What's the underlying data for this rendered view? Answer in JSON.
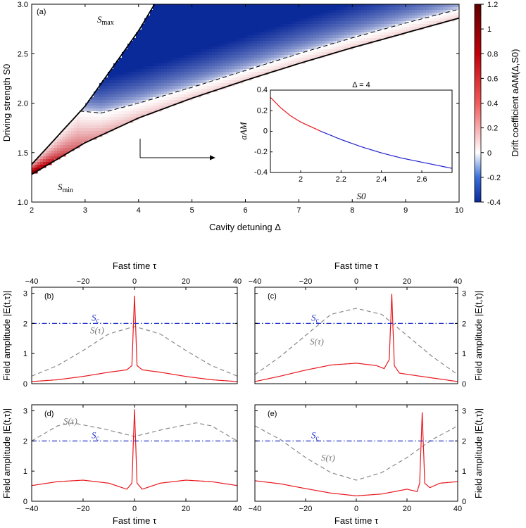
{
  "chart_data": [
    {
      "panel": "(a)",
      "type": "heatmap",
      "xlabel": "Cavity detuning Δ",
      "ylabel": "Driving strength S0",
      "xlim": [
        2,
        10
      ],
      "ylim": [
        1.0,
        3.0
      ],
      "xticks": [
        2,
        3,
        4,
        5,
        6,
        7,
        8,
        9,
        10
      ],
      "yticks": [
        1.0,
        1.5,
        2.0,
        2.5,
        3.0
      ],
      "colorbar": {
        "label": "Drift coefficient aAM(Δ,S0)",
        "range": [
          -0.4,
          1.2
        ],
        "ticks": [
          -0.4,
          -0.2,
          0,
          0.2,
          0.4,
          0.6,
          0.8,
          1,
          1.2
        ],
        "colors": {
          "negative": "#0b2a9a",
          "zero": "#ffffff",
          "positive": "#c0000a",
          "max": "#6a0000"
        }
      },
      "annotations": {
        "smax": "S",
        "smax_sub": "max",
        "smin": "S",
        "smin_sub": "min"
      },
      "curves": {
        "S_max": {
          "x": [
            2,
            3,
            4,
            4.3
          ],
          "y": [
            1.38,
            1.97,
            2.73,
            3.0
          ],
          "style": "solid"
        },
        "S_min": {
          "x": [
            2,
            3,
            4,
            5,
            6,
            7,
            8,
            9,
            10
          ],
          "y": [
            1.28,
            1.6,
            1.85,
            2.05,
            2.23,
            2.4,
            2.56,
            2.71,
            2.86
          ],
          "style": "solid"
        },
        "zero_contour": {
          "x": [
            2.9,
            3.3,
            4,
            5,
            6,
            7,
            8,
            9,
            10
          ],
          "y": [
            1.92,
            1.9,
            2.0,
            2.16,
            2.33,
            2.5,
            2.66,
            2.81,
            2.95
          ],
          "style": "dashed"
        }
      }
    },
    {
      "panel": "inset",
      "type": "line",
      "title": "Δ = 4",
      "xlabel": "S0",
      "ylabel": "aAM",
      "xlim": [
        1.85,
        2.75
      ],
      "ylim": [
        -0.4,
        0.4
      ],
      "xticks": [
        2,
        2.2,
        2.4,
        2.6
      ],
      "yticks": [
        0.4,
        0.2,
        0,
        -0.2,
        -0.4
      ],
      "series": [
        {
          "name": "aAM",
          "x": [
            1.85,
            1.9,
            1.95,
            2.0,
            2.1,
            2.2,
            2.3,
            2.4,
            2.5,
            2.6,
            2.75
          ],
          "y": [
            0.33,
            0.23,
            0.15,
            0.09,
            0.0,
            -0.08,
            -0.15,
            -0.21,
            -0.26,
            -0.3,
            -0.36
          ],
          "positive_color": "#e8181f",
          "negative_color": "#2222d0"
        }
      ]
    },
    {
      "panel": "(b)",
      "type": "line",
      "xlim": [
        -40,
        40
      ],
      "ylim": [
        0,
        3.2
      ],
      "xticks": [
        -40,
        -20,
        0,
        20,
        40
      ],
      "yticks": [
        0,
        1,
        2,
        3
      ],
      "sc_label": "S",
      "sc_sub": "c",
      "sc_value": 2.0,
      "s_tau_label": "S(τ)",
      "series": [
        {
          "name": "S(τ)",
          "style": "dashed",
          "color": "#8a8a8a",
          "x": [
            -40,
            -30,
            -20,
            -10,
            0,
            10,
            20,
            30,
            40
          ],
          "y": [
            0.25,
            0.6,
            1.1,
            1.65,
            1.9,
            1.65,
            1.1,
            0.6,
            0.25
          ]
        },
        {
          "name": "|E(t,τ)|",
          "style": "solid",
          "color": "#e8181f",
          "x": [
            -40,
            -30,
            -20,
            -10,
            -3,
            -1,
            0,
            1,
            3,
            10,
            20,
            30,
            40
          ],
          "y": [
            0.07,
            0.13,
            0.24,
            0.38,
            0.46,
            0.6,
            2.92,
            0.6,
            0.46,
            0.38,
            0.24,
            0.13,
            0.07
          ]
        },
        {
          "name": "S_c",
          "style": "dashdot",
          "color": "#2233cc",
          "x": [
            -40,
            40
          ],
          "y": [
            2.0,
            2.0
          ]
        }
      ]
    },
    {
      "panel": "(c)",
      "type": "line",
      "xlim": [
        -40,
        40
      ],
      "ylim": [
        0,
        3.2
      ],
      "xticks": [
        -40,
        -20,
        0,
        20,
        40
      ],
      "yticks": [
        0,
        1,
        2,
        3
      ],
      "sc_label": "S",
      "sc_sub": "c",
      "sc_value": 2.0,
      "s_tau_label": "S(τ)",
      "series": [
        {
          "name": "S(τ)",
          "style": "dashed",
          "color": "#8a8a8a",
          "x": [
            -40,
            -30,
            -20,
            -10,
            0,
            10,
            20,
            30,
            40
          ],
          "y": [
            0.3,
            0.9,
            1.6,
            2.3,
            2.5,
            2.3,
            1.6,
            0.9,
            0.3
          ]
        },
        {
          "name": "|E(t,τ)|",
          "style": "solid",
          "color": "#e8181f",
          "x": [
            -40,
            -30,
            -20,
            -10,
            0,
            8,
            11,
            13,
            14,
            15,
            17,
            25,
            40
          ],
          "y": [
            0.07,
            0.25,
            0.45,
            0.62,
            0.68,
            0.6,
            0.5,
            0.8,
            2.98,
            0.6,
            0.35,
            0.25,
            0.07
          ]
        },
        {
          "name": "S_c",
          "style": "dashdot",
          "color": "#2233cc",
          "x": [
            -40,
            40
          ],
          "y": [
            2.0,
            2.0
          ]
        }
      ]
    },
    {
      "panel": "(d)",
      "type": "line",
      "xlim": [
        -40,
        40
      ],
      "ylim": [
        0,
        3.2
      ],
      "xticks": [
        -40,
        -20,
        0,
        20,
        40
      ],
      "yticks": [
        0,
        1,
        2,
        3
      ],
      "sc_label": "S",
      "sc_sub": "c",
      "sc_value": 2.0,
      "s_tau_label": "S(τ)",
      "series": [
        {
          "name": "S(τ)",
          "style": "dashed",
          "color": "#8a8a8a",
          "x": [
            -40,
            -30,
            -24,
            -12,
            0,
            12,
            24,
            30,
            40
          ],
          "y": [
            2.0,
            2.5,
            2.6,
            2.4,
            2.15,
            2.4,
            2.6,
            2.5,
            2.0
          ]
        },
        {
          "name": "|E(t,τ)|",
          "style": "solid",
          "color": "#e8181f",
          "x": [
            -40,
            -30,
            -20,
            -10,
            -3,
            -1,
            0,
            1,
            3,
            10,
            20,
            30,
            40
          ],
          "y": [
            0.52,
            0.65,
            0.7,
            0.6,
            0.4,
            0.6,
            3.05,
            0.6,
            0.4,
            0.6,
            0.7,
            0.65,
            0.52
          ]
        },
        {
          "name": "S_c",
          "style": "dashdot",
          "color": "#2233cc",
          "x": [
            -40,
            40
          ],
          "y": [
            2.0,
            2.0
          ]
        }
      ]
    },
    {
      "panel": "(e)",
      "type": "line",
      "xlim": [
        -40,
        40
      ],
      "ylim": [
        0,
        3.2
      ],
      "xticks": [
        -40,
        -20,
        0,
        20,
        40
      ],
      "yticks": [
        0,
        1,
        2,
        3
      ],
      "sc_label": "S",
      "sc_sub": "c",
      "sc_value": 2.0,
      "s_tau_label": "S(τ)",
      "series": [
        {
          "name": "S(τ)",
          "style": "dashed",
          "color": "#8a8a8a",
          "x": [
            -40,
            -30,
            -20,
            -10,
            0,
            10,
            20,
            30,
            40
          ],
          "y": [
            2.5,
            2.05,
            1.45,
            0.95,
            0.7,
            0.95,
            1.45,
            2.05,
            2.5
          ]
        },
        {
          "name": "|E(t,τ)|",
          "style": "solid",
          "color": "#e8181f",
          "x": [
            -40,
            -30,
            -20,
            -10,
            0,
            10,
            20,
            24,
            25,
            26,
            27,
            29,
            33,
            40
          ],
          "y": [
            0.68,
            0.58,
            0.42,
            0.27,
            0.18,
            0.24,
            0.4,
            0.32,
            0.6,
            2.95,
            0.6,
            0.45,
            0.6,
            0.65
          ]
        },
        {
          "name": "S_c",
          "style": "dashdot",
          "color": "#2233cc",
          "x": [
            -40,
            40
          ],
          "y": [
            2.0,
            2.0
          ]
        }
      ]
    }
  ],
  "labels": {
    "fast_time": "Fast time τ",
    "field_amplitude": "Field amplitude |E(t,τ)|",
    "inset_title": "Δ = 4"
  }
}
